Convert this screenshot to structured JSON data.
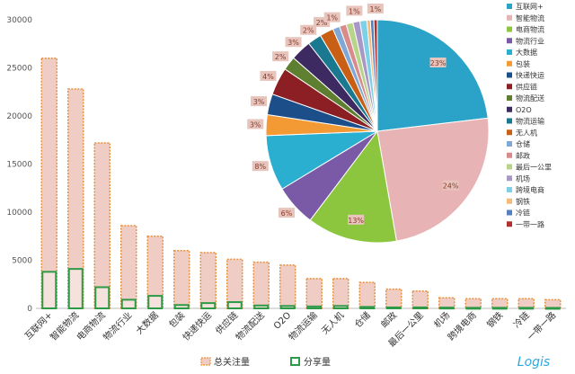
{
  "chart_data": [
    {
      "type": "bar",
      "categories": [
        "互联网+",
        "智能物流",
        "电商物流",
        "物流行业",
        "大数据",
        "包装",
        "快递快运",
        "供应链",
        "物流配送",
        "O2O",
        "物流运输",
        "无人机",
        "仓储",
        "邮政",
        "最后一公里",
        "机场",
        "跨境电商",
        "钢铁",
        "冷链",
        "一带一路"
      ],
      "series": [
        {
          "name": "总关注量",
          "values": [
            26000,
            22800,
            17200,
            8600,
            7500,
            6000,
            5800,
            5100,
            4800,
            4500,
            3100,
            3100,
            2700,
            2000,
            1800,
            1100,
            1000,
            1000,
            1000,
            900
          ]
        },
        {
          "name": "分享量",
          "values": [
            3800,
            4100,
            2200,
            900,
            1300,
            350,
            550,
            650,
            300,
            250,
            200,
            250,
            150,
            100,
            100,
            80,
            60,
            60,
            60,
            50
          ]
        }
      ],
      "ylim": [
        0,
        30000
      ],
      "yticks": [
        "0",
        "5000",
        "10000",
        "15000",
        "20000",
        "25000",
        "30000"
      ],
      "grid": false,
      "legend_position": "bottom",
      "colors": {
        "total_fill": "#f0cdc4",
        "total_border": "#e8913e",
        "share_border": "#2e9a48"
      }
    },
    {
      "type": "pie",
      "labels": [
        "互联网+",
        "智能物流",
        "电商物流",
        "物流行业",
        "大数据",
        "包装",
        "快递快运",
        "供应链",
        "物流配送",
        "O2O",
        "物流运输",
        "无人机",
        "仓储",
        "邮政",
        "最后一公里",
        "机场",
        "跨境电商",
        "钢铁",
        "冷链",
        "一带一路"
      ],
      "values": [
        23,
        24,
        13,
        6,
        8,
        3,
        3,
        4,
        2,
        3,
        2,
        2,
        1,
        1,
        1,
        1,
        1,
        0.5,
        0.5,
        0.5
      ],
      "data_labels": [
        "23%",
        "24%",
        "13%",
        "6%",
        "8%",
        "3%",
        "3%",
        "4%",
        "2%",
        "3%",
        "2%",
        "2%",
        "1%",
        "",
        "",
        "1%",
        "",
        "",
        "",
        "1%"
      ],
      "colors": [
        "#2ba3c8",
        "#e8b3b5",
        "#8cc63e",
        "#7a5aa6",
        "#2bafd0",
        "#f39a34",
        "#1c4f8a",
        "#8b1f24",
        "#5e7f2f",
        "#3d2a61",
        "#1a7891",
        "#c85f14",
        "#7fa8d6",
        "#d98b8b",
        "#b8d48a",
        "#a898c8",
        "#7dd0e6",
        "#f6bb7a",
        "#5580c0",
        "#b03030"
      ],
      "legend_position": "right"
    }
  ],
  "logo_text": "Logis"
}
